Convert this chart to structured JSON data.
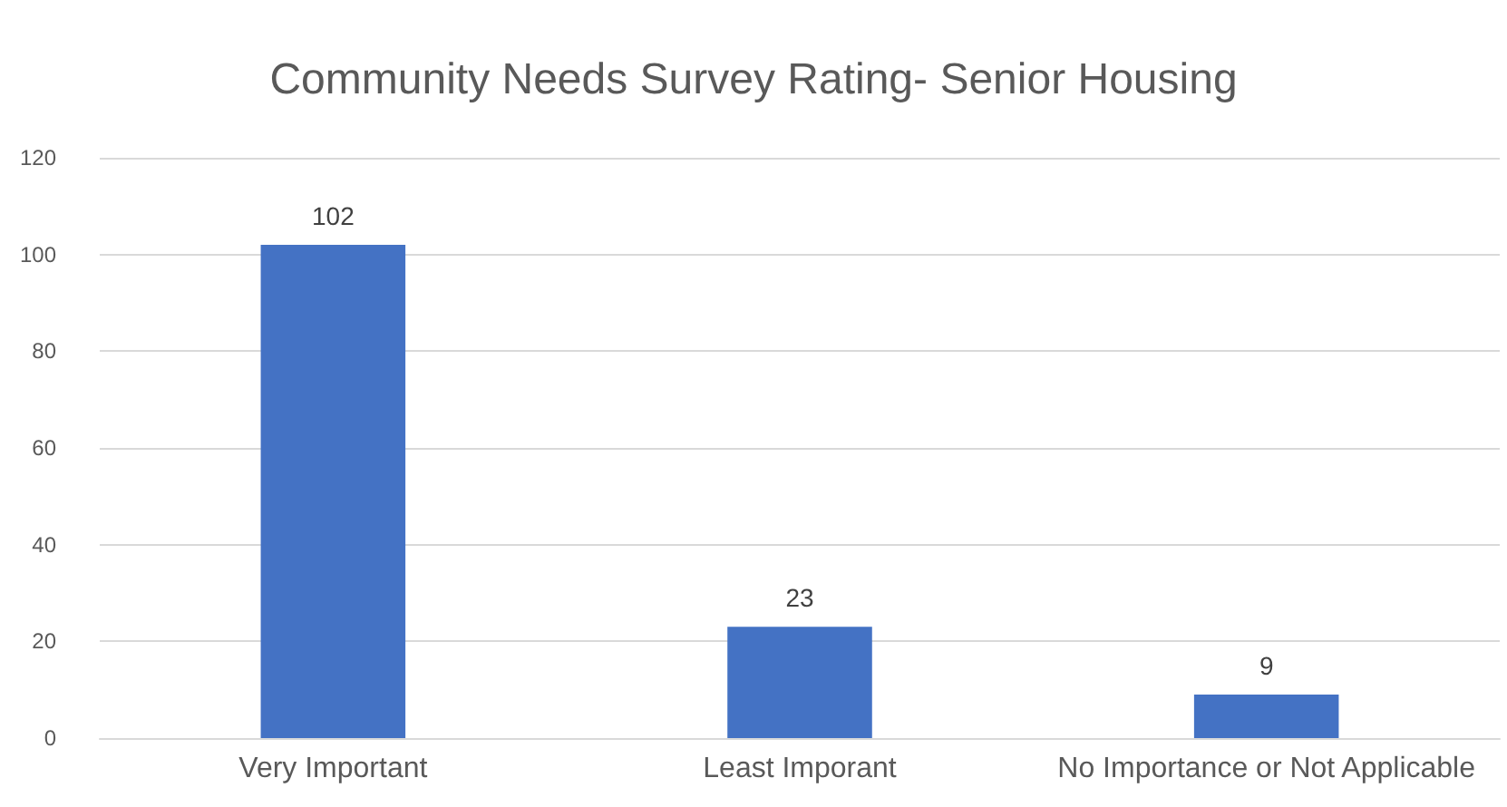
{
  "chart_data": {
    "type": "bar",
    "title": "Community Needs Survey Rating- Senior Housing",
    "categories": [
      "Very Important",
      "Least Imporant",
      "No Importance or Not Applicable"
    ],
    "values": [
      102,
      23,
      9
    ],
    "color": "#4472c4",
    "ylim": [
      0,
      120
    ],
    "yticks": [
      0,
      20,
      40,
      60,
      80,
      100,
      120
    ],
    "grid": "y",
    "data_labels": true
  }
}
